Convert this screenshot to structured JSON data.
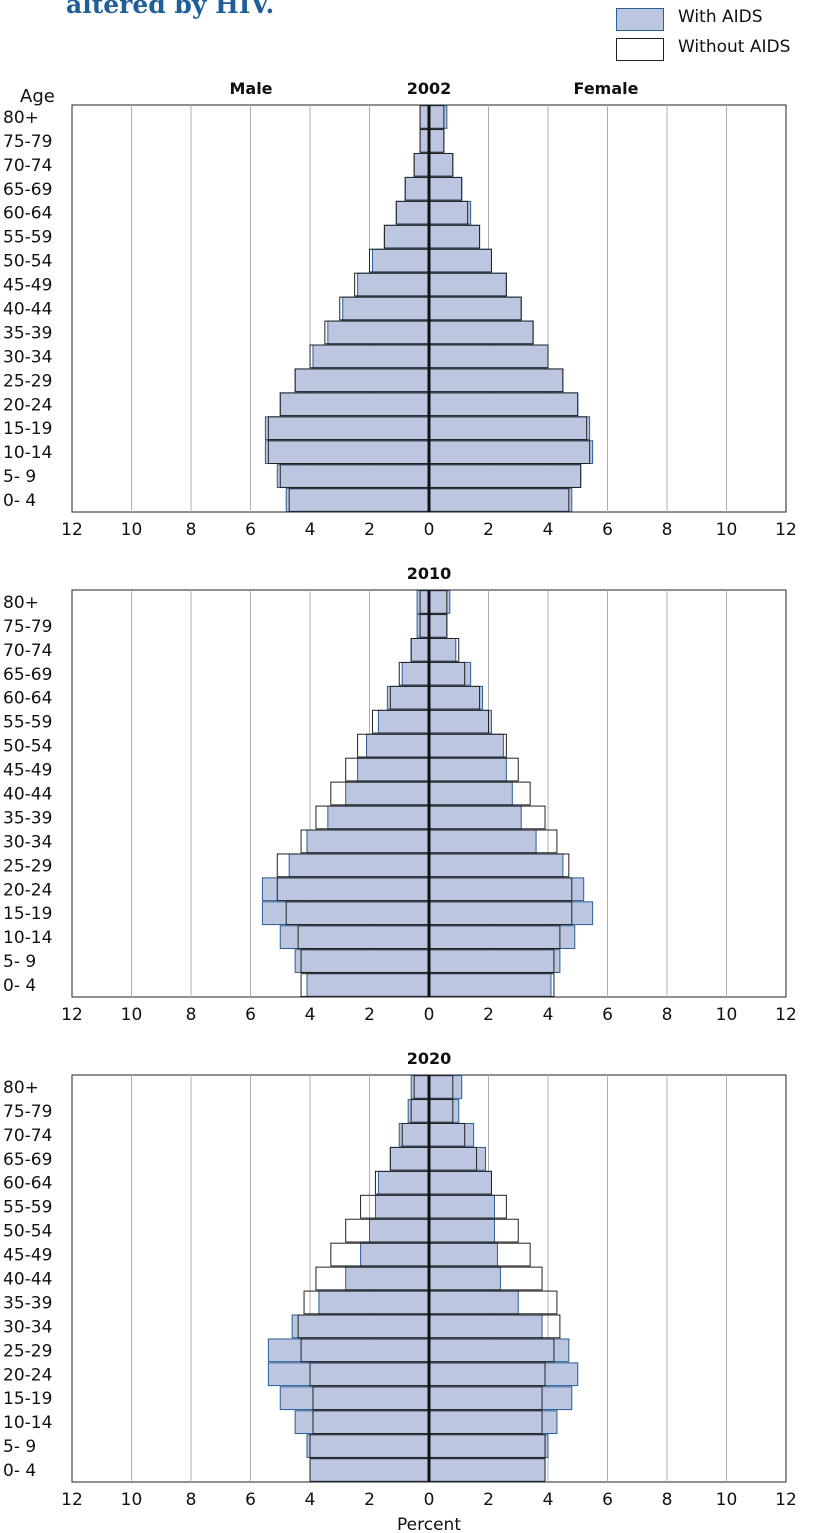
{
  "title": "altered by HIV.",
  "legend": {
    "with_label": "With AIDS",
    "without_label": "Without AIDS",
    "with_color": "#bcc6e0",
    "with_border": "#2b5e93",
    "without_color": "#ffffff",
    "without_border": "#222222"
  },
  "xlabel": "Percent",
  "age_axis_label": "Age",
  "male_label": "Male",
  "female_label": "Female",
  "chart_data": [
    {
      "type": "bar",
      "subtitle": "2002",
      "categories": [
        "80+",
        "75-79",
        "70-74",
        "65-69",
        "60-64",
        "55-59",
        "50-54",
        "45-49",
        "40-44",
        "35-39",
        "30-34",
        "25-29",
        "20-24",
        "15-19",
        "10-14",
        "5- 9",
        "0- 4"
      ],
      "xlim": [
        -12,
        12
      ],
      "xticks": [
        "12",
        "10",
        "8",
        "6",
        "4",
        "2",
        "0",
        "2",
        "4",
        "6",
        "8",
        "10",
        "12"
      ],
      "series": [
        {
          "name": "With AIDS",
          "male": [
            0.3,
            0.3,
            0.5,
            0.8,
            1.1,
            1.5,
            1.9,
            2.4,
            2.9,
            3.4,
            3.9,
            4.5,
            5.0,
            5.5,
            5.5,
            5.1,
            4.8
          ],
          "female": [
            0.6,
            0.5,
            0.8,
            1.1,
            1.4,
            1.7,
            2.1,
            2.6,
            3.1,
            3.5,
            4.0,
            4.5,
            5.0,
            5.4,
            5.5,
            5.1,
            4.8
          ]
        },
        {
          "name": "Without AIDS",
          "male": [
            0.3,
            0.3,
            0.5,
            0.8,
            1.1,
            1.5,
            2.0,
            2.5,
            3.0,
            3.5,
            4.0,
            4.5,
            5.0,
            5.4,
            5.4,
            5.0,
            4.7
          ],
          "female": [
            0.5,
            0.5,
            0.8,
            1.1,
            1.3,
            1.7,
            2.1,
            2.6,
            3.1,
            3.5,
            4.0,
            4.5,
            5.0,
            5.3,
            5.4,
            5.1,
            4.7
          ]
        }
      ]
    },
    {
      "type": "bar",
      "subtitle": "2010",
      "categories": [
        "80+",
        "75-79",
        "70-74",
        "65-69",
        "60-64",
        "55-59",
        "50-54",
        "45-49",
        "40-44",
        "35-39",
        "30-34",
        "25-29",
        "20-24",
        "15-19",
        "10-14",
        "5- 9",
        "0- 4"
      ],
      "xlim": [
        -12,
        12
      ],
      "xticks": [
        "12",
        "10",
        "8",
        "6",
        "4",
        "2",
        "0",
        "2",
        "4",
        "6",
        "8",
        "10",
        "12"
      ],
      "series": [
        {
          "name": "With AIDS",
          "male": [
            0.4,
            0.4,
            0.6,
            0.9,
            1.4,
            1.7,
            2.1,
            2.4,
            2.8,
            3.4,
            4.1,
            4.7,
            5.6,
            5.6,
            5.0,
            4.5,
            4.1
          ],
          "female": [
            0.7,
            0.6,
            0.9,
            1.4,
            1.8,
            2.1,
            2.5,
            2.6,
            2.8,
            3.1,
            3.6,
            4.5,
            5.2,
            5.5,
            4.9,
            4.4,
            4.1
          ]
        },
        {
          "name": "Without AIDS",
          "male": [
            0.3,
            0.3,
            0.6,
            1.0,
            1.3,
            1.9,
            2.4,
            2.8,
            3.3,
            3.8,
            4.3,
            5.1,
            5.1,
            4.8,
            4.4,
            4.3,
            4.3
          ],
          "female": [
            0.6,
            0.6,
            1.0,
            1.2,
            1.7,
            2.0,
            2.6,
            3.0,
            3.4,
            3.9,
            4.3,
            4.7,
            4.8,
            4.8,
            4.4,
            4.2,
            4.2
          ]
        }
      ]
    },
    {
      "type": "bar",
      "subtitle": "2020",
      "categories": [
        "80+",
        "75-79",
        "70-74",
        "65-69",
        "60-64",
        "55-59",
        "50-54",
        "45-49",
        "40-44",
        "35-39",
        "30-34",
        "25-29",
        "20-24",
        "15-19",
        "10-14",
        "5- 9",
        "0- 4"
      ],
      "xlim": [
        -12,
        12
      ],
      "xticks": [
        "12",
        "10",
        "8",
        "6",
        "4",
        "2",
        "0",
        "2",
        "4",
        "6",
        "8",
        "10",
        "12"
      ],
      "series": [
        {
          "name": "With AIDS",
          "male": [
            0.6,
            0.7,
            1.0,
            1.3,
            1.7,
            1.8,
            2.0,
            2.3,
            2.8,
            3.7,
            4.6,
            5.4,
            5.4,
            5.0,
            4.5,
            4.1,
            4.0
          ],
          "female": [
            1.1,
            1.0,
            1.5,
            1.9,
            2.1,
            2.2,
            2.2,
            2.3,
            2.4,
            3.0,
            3.8,
            4.7,
            5.0,
            4.8,
            4.3,
            4.0,
            3.9
          ]
        },
        {
          "name": "Without AIDS",
          "male": [
            0.5,
            0.6,
            0.9,
            1.3,
            1.8,
            2.3,
            2.8,
            3.3,
            3.8,
            4.2,
            4.4,
            4.3,
            4.0,
            3.9,
            3.9,
            4.0,
            4.0
          ],
          "female": [
            0.8,
            0.8,
            1.2,
            1.6,
            2.1,
            2.6,
            3.0,
            3.4,
            3.8,
            4.3,
            4.4,
            4.2,
            3.9,
            3.8,
            3.8,
            3.9,
            3.9
          ]
        }
      ]
    }
  ]
}
